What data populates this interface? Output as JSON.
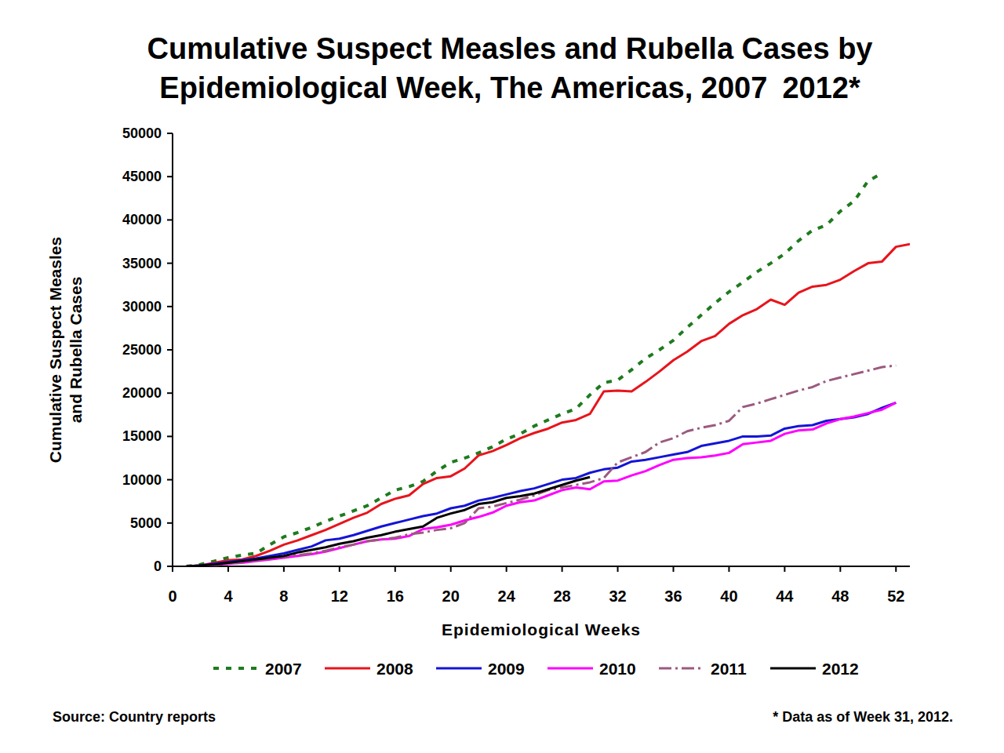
{
  "chart_data": {
    "type": "line",
    "title": "Cumulative Suspect Measles and Rubella Cases by\nEpidemiological Week, The Americas, 2007 2012*",
    "x_label": "Epidemiological Weeks",
    "y_label": "Cumulative Suspect Measles\nand Rubella Cases",
    "source": "Source: Country reports",
    "note": "* Data as of Week 31, 2012.",
    "x": [
      1,
      2,
      3,
      4,
      5,
      6,
      7,
      8,
      9,
      10,
      11,
      12,
      13,
      14,
      15,
      16,
      17,
      18,
      19,
      20,
      21,
      22,
      23,
      24,
      25,
      26,
      27,
      28,
      29,
      30,
      31,
      32,
      33,
      34,
      35,
      36,
      37,
      38,
      39,
      40,
      41,
      42,
      43,
      44,
      45,
      46,
      47,
      48,
      49,
      50,
      51,
      52,
      53
    ],
    "xlim": [
      0,
      53
    ],
    "xticks": [
      0,
      4,
      8,
      12,
      16,
      20,
      24,
      28,
      32,
      36,
      40,
      44,
      48,
      52
    ],
    "ylim": [
      0,
      50000
    ],
    "yticks": [
      0,
      5000,
      10000,
      15000,
      20000,
      25000,
      30000,
      35000,
      40000,
      45000,
      50000
    ],
    "grid": false,
    "legend": "bottom",
    "series": [
      {
        "name": "2007",
        "color": "#1e7b1e",
        "line_style": "dotted",
        "values": [
          0,
          200,
          600,
          1000,
          1300,
          1500,
          2500,
          3400,
          3900,
          4500,
          5200,
          5800,
          6400,
          7000,
          7900,
          8800,
          9200,
          9800,
          11000,
          12000,
          12500,
          13100,
          13800,
          14700,
          15300,
          16200,
          16900,
          17600,
          18200,
          19800,
          21200,
          21500,
          22700,
          24000,
          25000,
          26100,
          27600,
          29000,
          30400,
          31700,
          32800,
          34000,
          35000,
          36100,
          37600,
          38800,
          39400,
          41000,
          42200,
          44500,
          45400,
          null,
          null
        ]
      },
      {
        "name": "2008",
        "color": "#e8141c",
        "line_style": "solid",
        "values": [
          0,
          100,
          400,
          700,
          800,
          1200,
          1800,
          2500,
          3000,
          3600,
          4200,
          4900,
          5600,
          6200,
          7200,
          7800,
          8200,
          9500,
          10200,
          10400,
          11300,
          12800,
          13300,
          14000,
          14800,
          15400,
          15900,
          16600,
          16900,
          17600,
          20200,
          20300,
          20200,
          21300,
          22500,
          23800,
          24800,
          26000,
          26600,
          28000,
          29000,
          29700,
          30800,
          30200,
          31600,
          32300,
          32500,
          33100,
          34100,
          35000,
          35200,
          36900,
          37200
        ]
      },
      {
        "name": "2009",
        "color": "#1414d8",
        "line_style": "solid",
        "values": [
          0,
          100,
          300,
          500,
          700,
          900,
          1200,
          1500,
          1900,
          2300,
          3000,
          3200,
          3600,
          4100,
          4600,
          5000,
          5400,
          5800,
          6100,
          6700,
          7000,
          7600,
          7900,
          8300,
          8700,
          9000,
          9500,
          10000,
          10200,
          10800,
          11200,
          11400,
          12100,
          12300,
          12600,
          12900,
          13200,
          13900,
          14200,
          14500,
          15000,
          15000,
          15100,
          15900,
          16200,
          16300,
          16800,
          17000,
          17200,
          17600,
          18300,
          18900,
          null
        ]
      },
      {
        "name": "2010",
        "color": "#ff00ff",
        "line_style": "solid",
        "values": [
          0,
          50,
          150,
          300,
          400,
          600,
          800,
          1000,
          1200,
          1400,
          1700,
          2100,
          2500,
          2900,
          3100,
          3200,
          3500,
          4300,
          4500,
          4800,
          5300,
          5700,
          6200,
          7000,
          7400,
          7600,
          8200,
          8800,
          9100,
          8900,
          9800,
          9900,
          10500,
          11000,
          11700,
          12300,
          12500,
          12600,
          12800,
          13100,
          14100,
          14300,
          14500,
          15300,
          15700,
          15800,
          16500,
          17000,
          17300,
          17700,
          18100,
          18900,
          null
        ]
      },
      {
        "name": "2011",
        "color": "#9b5a80",
        "line_style": "dashdot",
        "values": [
          0,
          50,
          150,
          300,
          500,
          700,
          900,
          1100,
          1300,
          1500,
          1800,
          2200,
          2500,
          2900,
          3100,
          3300,
          3700,
          3900,
          4200,
          4400,
          5000,
          6700,
          6900,
          7300,
          7700,
          8200,
          8800,
          9100,
          9400,
          9700,
          10200,
          12000,
          12600,
          13200,
          14300,
          14800,
          15600,
          16000,
          16300,
          16800,
          18400,
          18800,
          19300,
          19800,
          20300,
          20700,
          21400,
          21800,
          22200,
          22600,
          23000,
          23200,
          null
        ]
      },
      {
        "name": "2012",
        "color": "#000000",
        "line_style": "solid",
        "values": [
          0,
          100,
          200,
          400,
          600,
          800,
          1000,
          1200,
          1600,
          1900,
          2200,
          2600,
          2900,
          3300,
          3600,
          4000,
          4300,
          4600,
          5600,
          6100,
          6500,
          7200,
          7400,
          7900,
          8100,
          8400,
          8900,
          9400,
          9900,
          10300,
          null,
          null,
          null,
          null,
          null,
          null,
          null,
          null,
          null,
          null,
          null,
          null,
          null,
          null,
          null,
          null,
          null,
          null,
          null,
          null,
          null,
          null,
          null
        ]
      }
    ]
  }
}
